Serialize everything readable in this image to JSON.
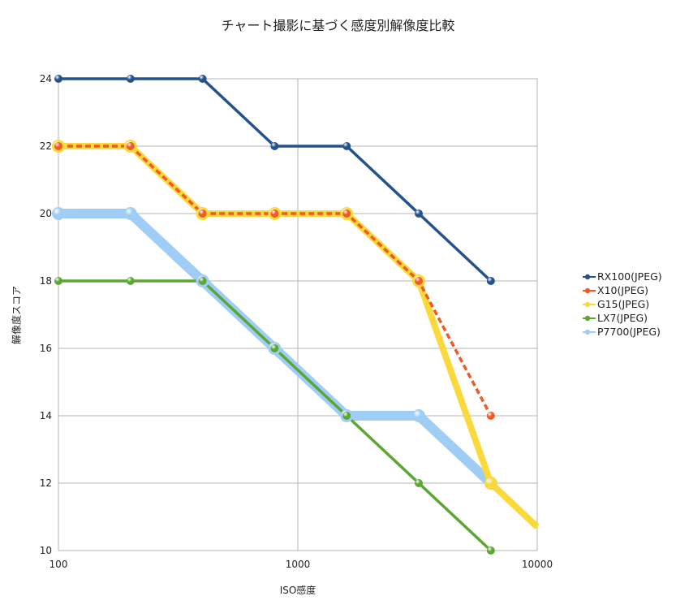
{
  "chart_data": {
    "type": "line",
    "title": "チャート撮影に基づく感度別解像度比較",
    "xlabel": "ISO感度",
    "ylabel": "解像度スコア",
    "xscale": "log",
    "xlim": [
      100,
      10000
    ],
    "ylim": [
      10,
      24
    ],
    "xticks": [
      "100",
      "1000",
      "10000"
    ],
    "yticks": [
      "10",
      "12",
      "14",
      "16",
      "18",
      "20",
      "22",
      "24"
    ],
    "grid": true,
    "legend_position": "right",
    "series": [
      {
        "name": "RX100(JPEG)",
        "color": "#24528c",
        "style": "solid",
        "width": 3.5,
        "x": [
          100,
          200,
          400,
          800,
          1600,
          3200,
          6400
        ],
        "y": [
          24,
          24,
          24,
          22,
          22,
          20,
          18
        ]
      },
      {
        "name": "X10(JPEG)",
        "color": "#f05a24",
        "style": "dashed",
        "width": 3.5,
        "x": [
          100,
          200,
          400,
          800,
          1600,
          3200,
          6400
        ],
        "y": [
          22,
          22,
          20,
          20,
          20,
          18,
          14
        ]
      },
      {
        "name": "G15(JPEG)",
        "color": "#f9d93b",
        "style": "solid",
        "width": 8,
        "x": [
          100,
          200,
          400,
          800,
          1600,
          3200,
          6400,
          10000
        ],
        "y": [
          22,
          22,
          20,
          20,
          20,
          18,
          12,
          10.7
        ]
      },
      {
        "name": "LX7(JPEG)",
        "color": "#5ca734",
        "style": "solid",
        "width": 3.5,
        "x": [
          100,
          200,
          400,
          800,
          1600,
          3200,
          6400
        ],
        "y": [
          18,
          18,
          18,
          16,
          14,
          12,
          10
        ]
      },
      {
        "name": "P7700(JPEG)",
        "color": "#9fcdf5",
        "style": "solid",
        "width": 12,
        "x": [
          100,
          200,
          400,
          800,
          1600,
          3200,
          6400
        ],
        "y": [
          20,
          20,
          18,
          16,
          14,
          14,
          12
        ]
      }
    ]
  }
}
